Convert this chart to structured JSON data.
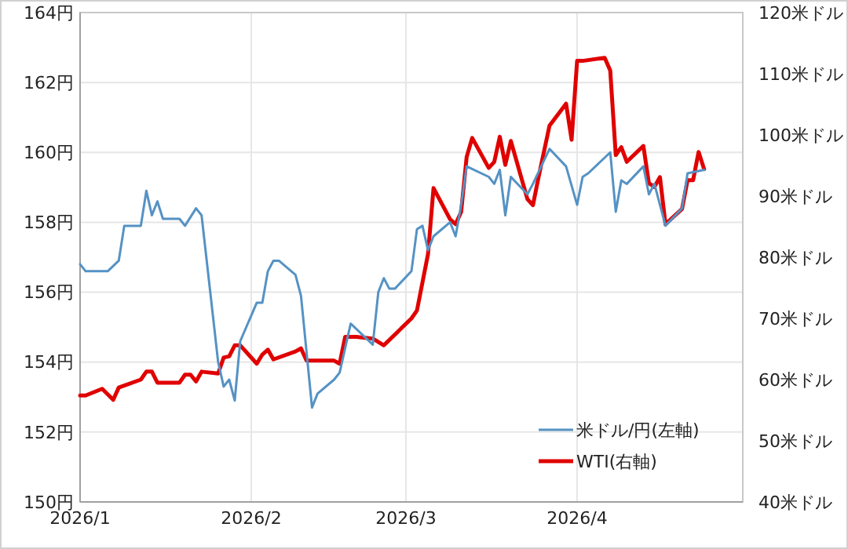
{
  "chart_data": {
    "type": "line",
    "xlim": [
      "2026-01-01",
      "2026-05-01"
    ],
    "xticks": [
      {
        "value": "2026-01-01",
        "label": "2026/1"
      },
      {
        "value": "2026-02-01",
        "label": "2026/2"
      },
      {
        "value": "2026-03-01",
        "label": "2026/3"
      },
      {
        "value": "2026-04-01",
        "label": "2026/4"
      }
    ],
    "ylim": [
      150,
      164
    ],
    "yticks": [
      {
        "value": 150,
        "label": "150円"
      },
      {
        "value": 152,
        "label": "152円"
      },
      {
        "value": 154,
        "label": "154円"
      },
      {
        "value": 156,
        "label": "156円"
      },
      {
        "value": 158,
        "label": "158円"
      },
      {
        "value": 160,
        "label": "160円"
      },
      {
        "value": 162,
        "label": "162円"
      },
      {
        "value": 164,
        "label": "164円"
      }
    ],
    "y2lim": [
      40,
      120
    ],
    "y2ticks": [
      {
        "value": 40,
        "label": "40米ドル"
      },
      {
        "value": 50,
        "label": "50米ドル"
      },
      {
        "value": 60,
        "label": "60米ドル"
      },
      {
        "value": 70,
        "label": "70米ドル"
      },
      {
        "value": 80,
        "label": "80米ドル"
      },
      {
        "value": 90,
        "label": "90米ドル"
      },
      {
        "value": 100,
        "label": "100米ドル"
      },
      {
        "value": 110,
        "label": "110米ドル"
      },
      {
        "value": 120,
        "label": "120米ドル"
      }
    ],
    "grid": true,
    "legend": "bottom right",
    "marker": "none",
    "line_style": "solid",
    "series": [
      {
        "name": "米ドル/円(左軸)",
        "color": "#5592c4",
        "x": [
          "2026-01-01",
          "2026-01-02",
          "2026-01-06",
          "2026-01-08",
          "2026-01-09",
          "2026-01-12",
          "2026-01-13",
          "2026-01-14",
          "2026-01-15",
          "2026-01-16",
          "2026-01-19",
          "2026-01-20",
          "2026-01-22",
          "2026-01-23",
          "2026-01-26",
          "2026-01-27",
          "2026-01-28",
          "2026-01-29",
          "2026-01-30",
          "2026-02-02",
          "2026-02-03",
          "2026-02-04",
          "2026-02-05",
          "2026-02-06",
          "2026-02-09",
          "2026-02-10",
          "2026-02-11",
          "2026-02-12",
          "2026-02-13",
          "2026-02-16",
          "2026-02-17",
          "2026-02-19",
          "2026-02-23",
          "2026-02-24",
          "2026-02-25",
          "2026-02-26",
          "2026-02-27",
          "2026-03-02",
          "2026-03-03",
          "2026-03-04",
          "2026-03-05",
          "2026-03-06",
          "2026-03-09",
          "2026-03-10",
          "2026-03-11",
          "2026-03-12",
          "2026-03-16",
          "2026-03-17",
          "2026-03-18",
          "2026-03-19",
          "2026-03-20",
          "2026-03-23",
          "2026-03-24",
          "2026-03-27",
          "2026-03-30",
          "2026-04-01",
          "2026-04-02",
          "2026-04-03",
          "2026-04-07",
          "2026-04-08",
          "2026-04-09",
          "2026-04-10",
          "2026-04-13",
          "2026-04-14",
          "2026-04-15",
          "2026-04-17",
          "2026-04-20",
          "2026-04-21",
          "2026-04-24"
        ],
        "values": [
          156.8,
          156.6,
          156.6,
          156.9,
          157.9,
          157.9,
          158.9,
          158.2,
          158.6,
          158.1,
          158.1,
          157.9,
          158.4,
          158.2,
          154.0,
          153.3,
          153.5,
          152.9,
          154.6,
          155.7,
          155.7,
          156.6,
          156.9,
          156.9,
          156.5,
          155.9,
          154.3,
          152.7,
          153.1,
          153.5,
          153.7,
          155.1,
          154.5,
          156.0,
          156.4,
          156.1,
          156.1,
          156.6,
          157.8,
          157.9,
          157.2,
          157.6,
          158.0,
          157.6,
          158.5,
          159.6,
          159.3,
          159.1,
          159.5,
          158.2,
          159.3,
          158.8,
          159.1,
          160.1,
          159.6,
          158.5,
          159.3,
          159.4,
          160.0,
          158.3,
          159.2,
          159.1,
          159.6,
          158.8,
          159.1,
          157.9,
          158.4,
          159.4,
          159.5
        ]
      },
      {
        "name": "WTI(右軸)",
        "color": "#e00000",
        "axis": "y2",
        "x": [
          "2026-01-01",
          "2026-01-02",
          "2026-01-05",
          "2026-01-07",
          "2026-01-08",
          "2026-01-12",
          "2026-01-13",
          "2026-01-14",
          "2026-01-15",
          "2026-01-19",
          "2026-01-20",
          "2026-01-21",
          "2026-01-22",
          "2026-01-23",
          "2026-01-26",
          "2026-01-27",
          "2026-01-28",
          "2026-01-29",
          "2026-01-30",
          "2026-02-02",
          "2026-02-03",
          "2026-02-04",
          "2026-02-05",
          "2026-02-09",
          "2026-02-10",
          "2026-02-11",
          "2026-02-16",
          "2026-02-17",
          "2026-02-18",
          "2026-02-20",
          "2026-02-23",
          "2026-02-25",
          "2026-03-02",
          "2026-03-03",
          "2026-03-04",
          "2026-03-05",
          "2026-03-06",
          "2026-03-09",
          "2026-03-10",
          "2026-03-11",
          "2026-03-12",
          "2026-03-13",
          "2026-03-16",
          "2026-03-17",
          "2026-03-18",
          "2026-03-19",
          "2026-03-20",
          "2026-03-23",
          "2026-03-24",
          "2026-03-25",
          "2026-03-27",
          "2026-03-30",
          "2026-03-31",
          "2026-04-01",
          "2026-04-02",
          "2026-04-06",
          "2026-04-07",
          "2026-04-08",
          "2026-04-09",
          "2026-04-10",
          "2026-04-13",
          "2026-04-14",
          "2026-04-15",
          "2026-04-16",
          "2026-04-17",
          "2026-04-20",
          "2026-04-21",
          "2026-04-22",
          "2026-04-23",
          "2026-04-24"
        ],
        "values": [
          57.4,
          57.4,
          58.5,
          56.7,
          58.7,
          60.0,
          61.3,
          61.3,
          59.5,
          59.5,
          60.8,
          60.8,
          59.7,
          61.3,
          61.0,
          63.6,
          63.8,
          65.6,
          65.6,
          62.6,
          64.1,
          64.9,
          63.3,
          64.6,
          65.1,
          63.1,
          63.1,
          62.6,
          67.0,
          67.0,
          66.7,
          65.6,
          70.0,
          71.3,
          75.9,
          80.5,
          91.3,
          86.2,
          85.4,
          87.4,
          96.4,
          99.5,
          94.6,
          95.6,
          99.7,
          95.1,
          99.0,
          89.5,
          88.5,
          93.0,
          101.5,
          105.1,
          99.2,
          112.1,
          112.1,
          112.6,
          110.5,
          96.7,
          98.0,
          95.6,
          98.2,
          92.1,
          91.5,
          93.1,
          85.4,
          87.9,
          92.6,
          92.6,
          97.2,
          94.4
        ]
      }
    ]
  }
}
